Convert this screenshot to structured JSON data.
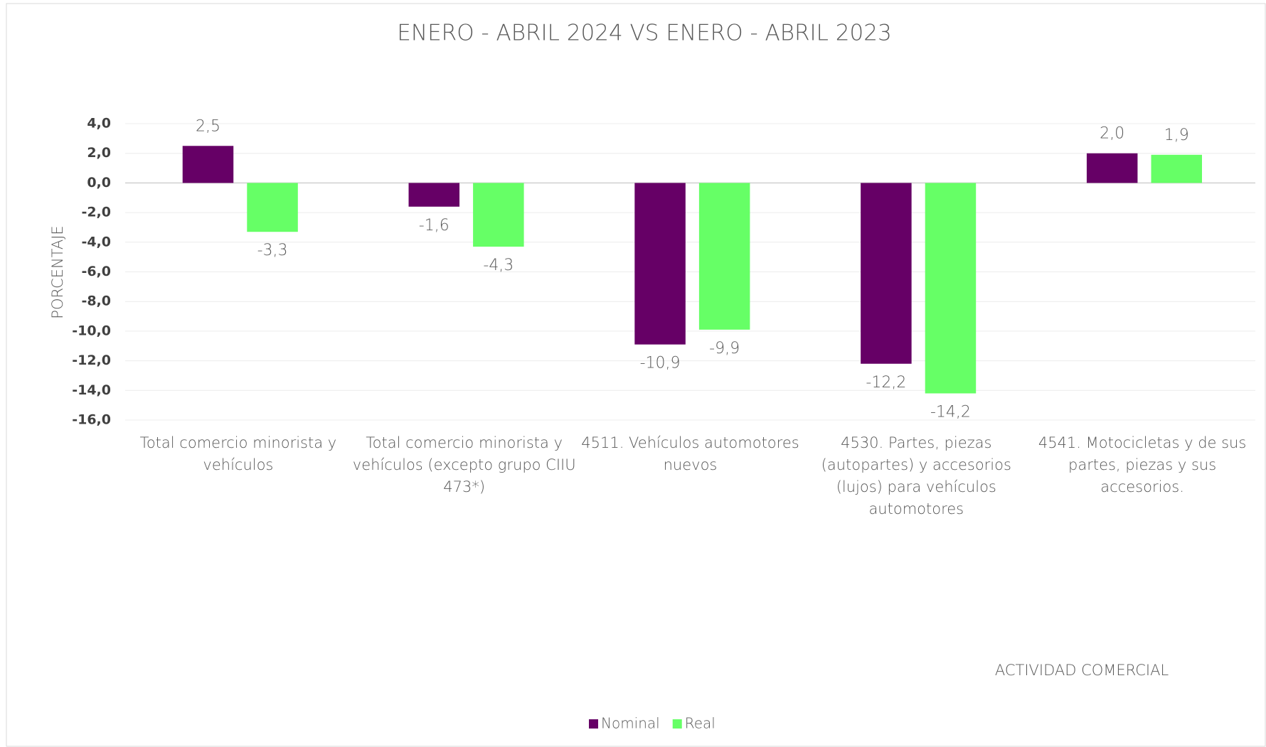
{
  "chart_data": {
    "type": "bar",
    "title": "ENERO - ABRIL 2024 VS ENERO - ABRIL 2023",
    "xlabel": "ACTIVIDAD COMERCIAL",
    "ylabel": "PORCENTAJE",
    "categories": [
      "Total comercio minorista y vehículos",
      "Total comercio minorista y vehículos  (excepto grupo CIIU 473*)",
      "4511. Vehículos automotores nuevos",
      "4530. Partes, piezas (autopartes)  y accesorios (lujos)  para vehículos automotores",
      "4541.  Motocicletas y de sus partes, piezas y sus accesorios."
    ],
    "series": [
      {
        "name": "Nominal",
        "color": "#660066",
        "values": [
          2.5,
          -1.6,
          -10.9,
          -12.2,
          2.0
        ],
        "value_labels": [
          "2,5",
          "-1,6",
          "-10,9",
          "-12,2",
          "2,0"
        ]
      },
      {
        "name": "Real",
        "color": "#66ff66",
        "values": [
          -3.3,
          -4.3,
          -9.9,
          -14.2,
          1.9
        ],
        "value_labels": [
          "-3,3",
          "-4,3",
          "-9,9",
          "-14,2",
          "1,9"
        ]
      }
    ],
    "ylim": [
      -16,
      4
    ],
    "yticks": [
      {
        "value": -16,
        "label": "-16,0"
      },
      {
        "value": -14,
        "label": "-14,0"
      },
      {
        "value": -12,
        "label": "-12,0"
      },
      {
        "value": -10,
        "label": "-10,0"
      },
      {
        "value": -8,
        "label": "-8,0"
      },
      {
        "value": -6,
        "label": "-6,0"
      },
      {
        "value": -4,
        "label": "-4,0"
      },
      {
        "value": -2,
        "label": "-2,0"
      },
      {
        "value": 0,
        "label": "0,0"
      },
      {
        "value": 2,
        "label": "2,0"
      },
      {
        "value": 4,
        "label": "4,0"
      }
    ],
    "grid": true,
    "legend": "bottom"
  }
}
